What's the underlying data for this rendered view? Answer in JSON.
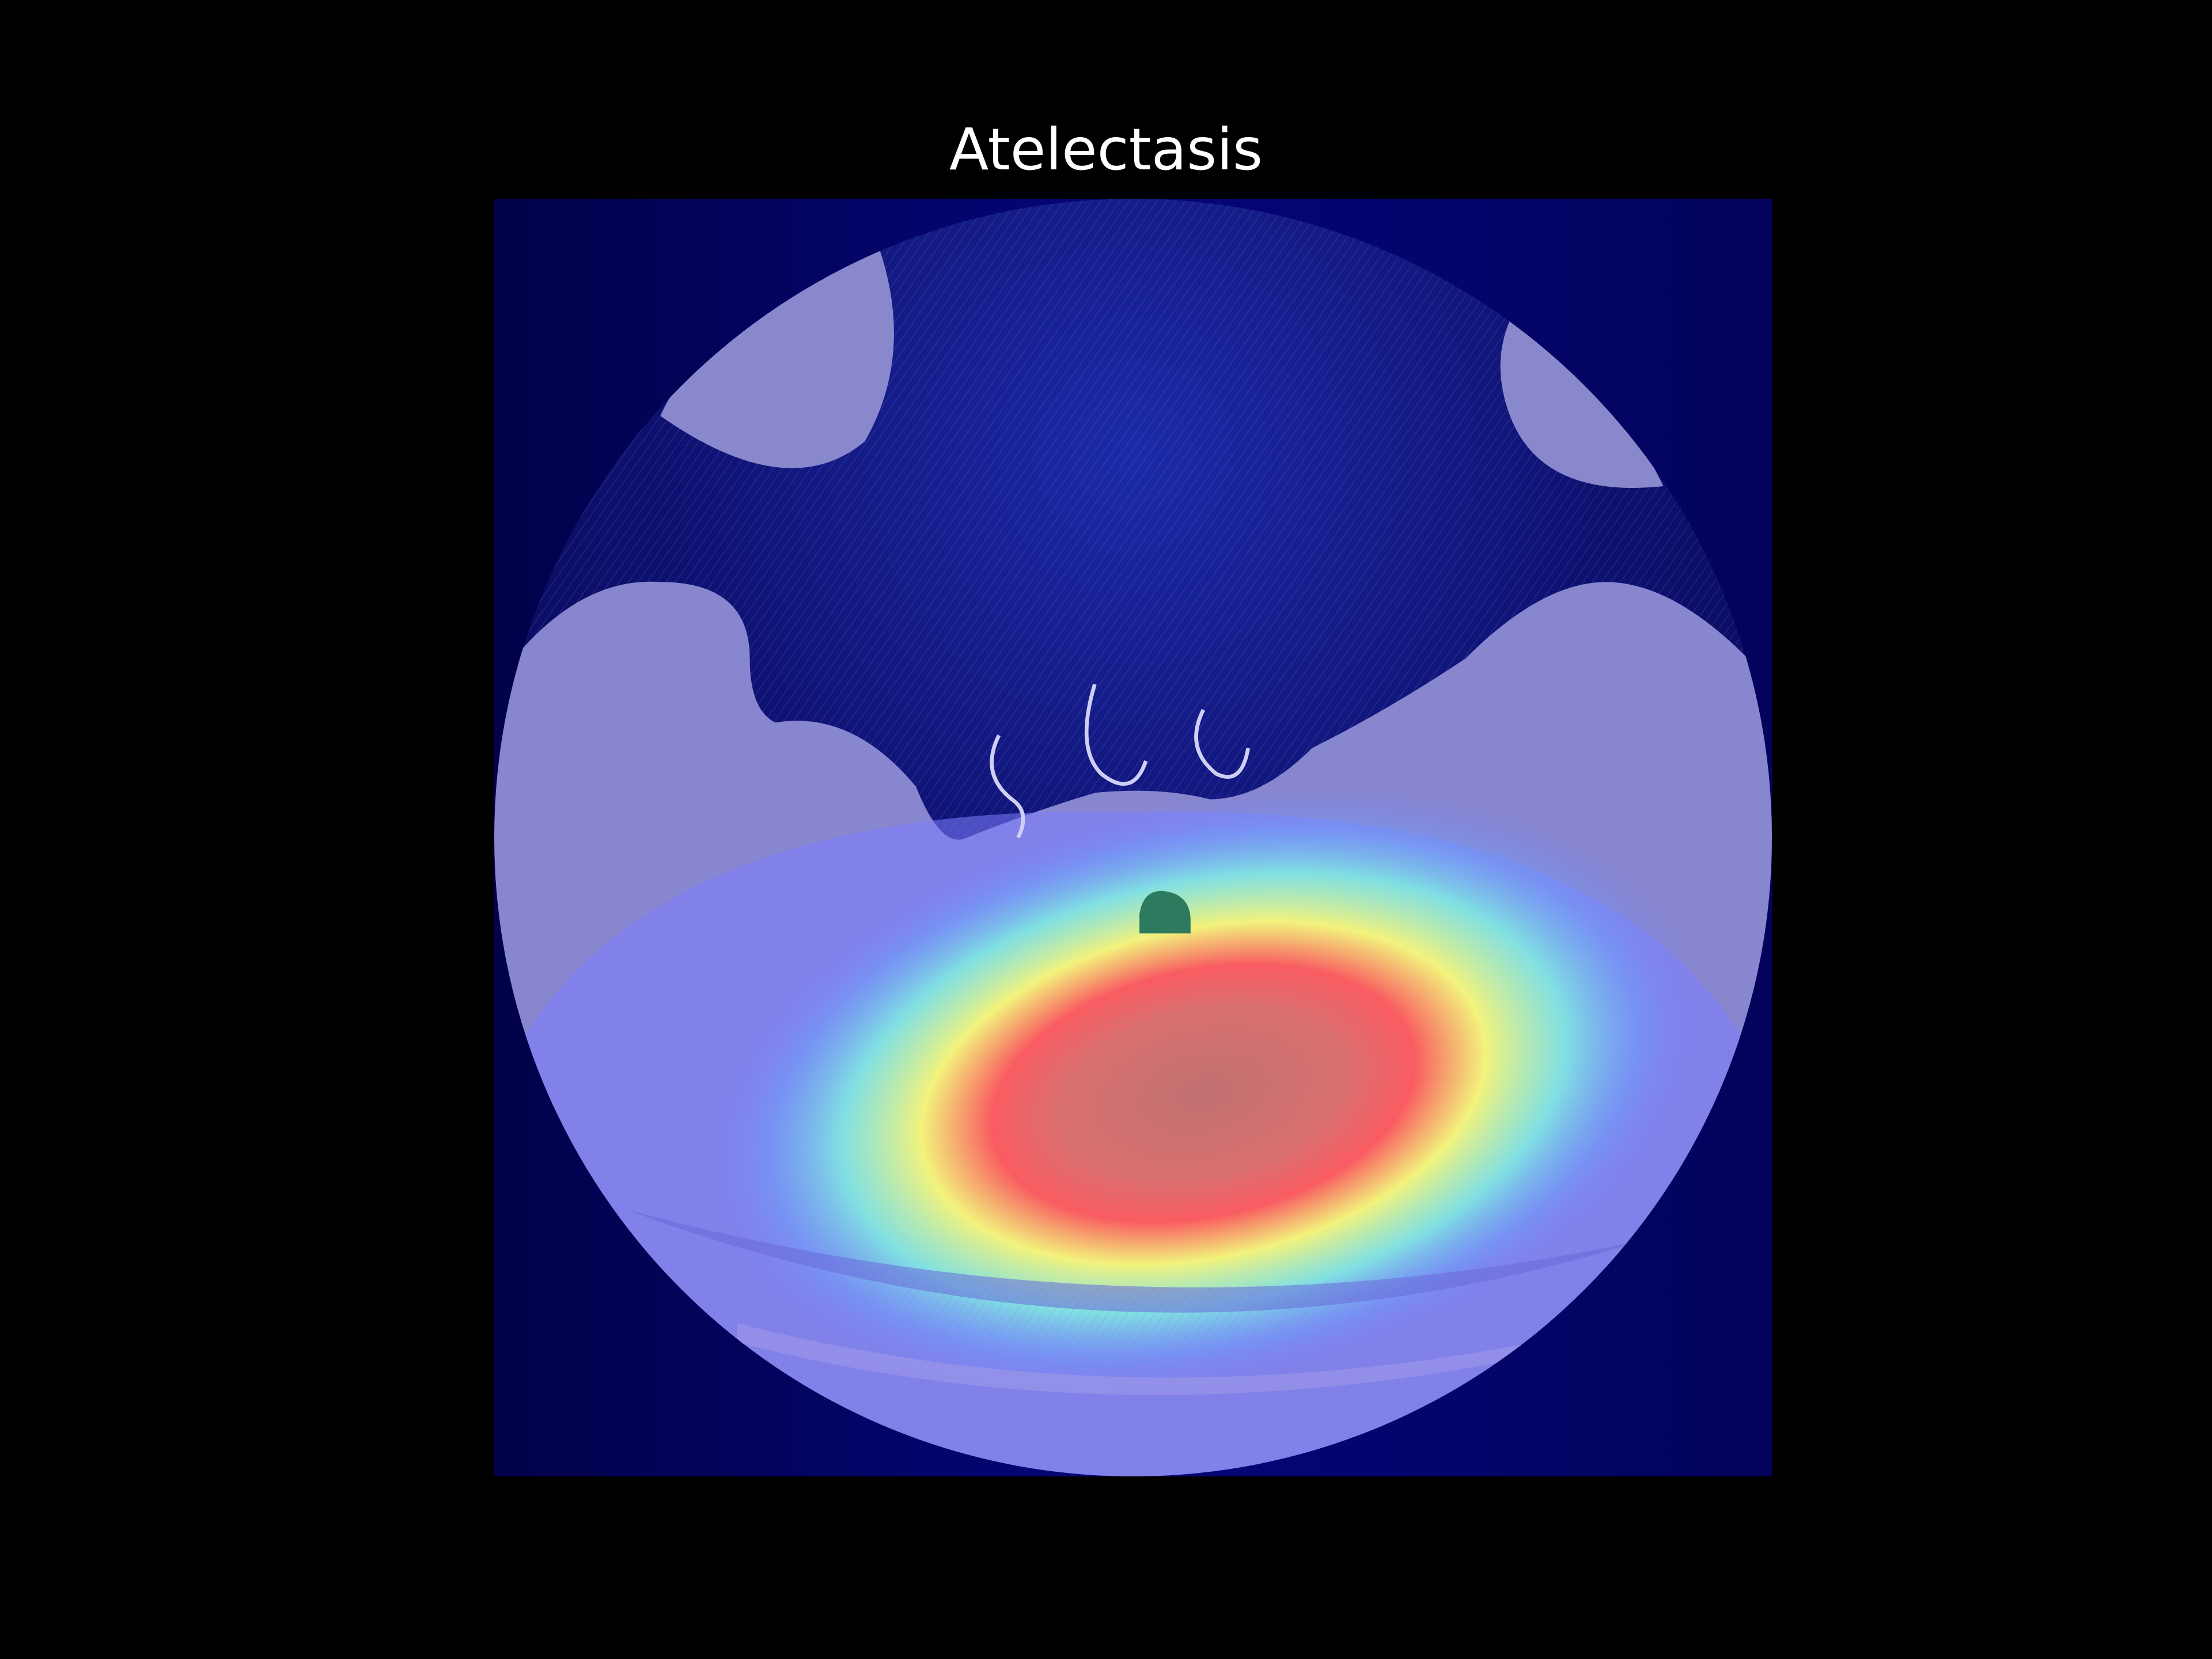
{
  "figure": {
    "title": "Atelectasis"
  },
  "image": {
    "subject": "axial-ct-slice-with-heatmap-overlay",
    "colors": {
      "background": "#000000",
      "heatmap_low": "#0a0a6e",
      "heatmap_mid": "#7fffd4",
      "heatmap_warm": "#ffff66",
      "heatmap_hot": "#ff4040"
    }
  }
}
